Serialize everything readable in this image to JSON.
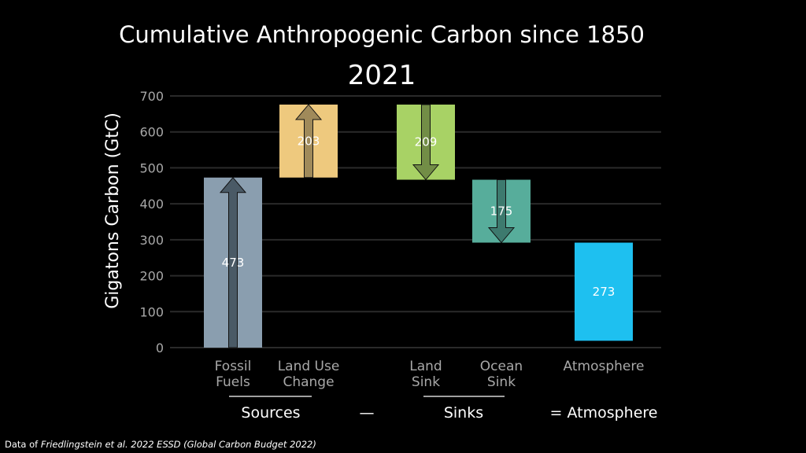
{
  "chart_data": {
    "type": "bar",
    "title": "Cumulative Anthropogenic Carbon since 1850",
    "subtitle": "2021",
    "ylabel": "Gigatons Carbon (GtC)",
    "xlabel": "",
    "ylim": [
      0,
      700
    ],
    "yticks": [
      "0",
      "100",
      "200",
      "300",
      "400",
      "500",
      "600",
      "700"
    ],
    "grid": true,
    "bars": [
      {
        "label_lines": [
          "Fossil",
          "Fuels"
        ],
        "value": 473,
        "value_label": "473",
        "bottom": 0,
        "top": 473,
        "direction": "up",
        "color": "#8a9eaf",
        "arrow_color": "#4a5a66"
      },
      {
        "label_lines": [
          "Land Use",
          "Change"
        ],
        "value": 203,
        "value_label": "203",
        "bottom": 473,
        "top": 676,
        "direction": "up",
        "color": "#eec97e",
        "arrow_color": "#a08a5a"
      },
      {
        "label_lines": [
          "Land",
          "Sink"
        ],
        "value": 209,
        "value_label": "209",
        "bottom": 467,
        "top": 676,
        "direction": "down",
        "color": "#a8d265",
        "arrow_color": "#728d46"
      },
      {
        "label_lines": [
          "Ocean",
          "Sink"
        ],
        "value": 175,
        "value_label": "175",
        "bottom": 292,
        "top": 467,
        "direction": "down",
        "color": "#57ad9b",
        "arrow_color": "#3d7a6e"
      },
      {
        "label_lines": [
          "Atmosphere"
        ],
        "value": 273,
        "value_label": "273",
        "bottom": 19,
        "top": 292,
        "direction": "none",
        "color": "#1ec0f0",
        "arrow_color": ""
      }
    ],
    "groups": {
      "sources": "Sources",
      "minus": "—",
      "sinks": "Sinks",
      "equals": "= Atmosphere"
    }
  },
  "credit": {
    "prefix": "Data of ",
    "source": "Friedlingstein et al. 2022 ESSD (Global Carbon Budget 2022)"
  },
  "colors": {
    "background": "#000000",
    "grid": "#2a2a2a",
    "tick_text": "#a8a8a8",
    "text": "#ffffff"
  }
}
